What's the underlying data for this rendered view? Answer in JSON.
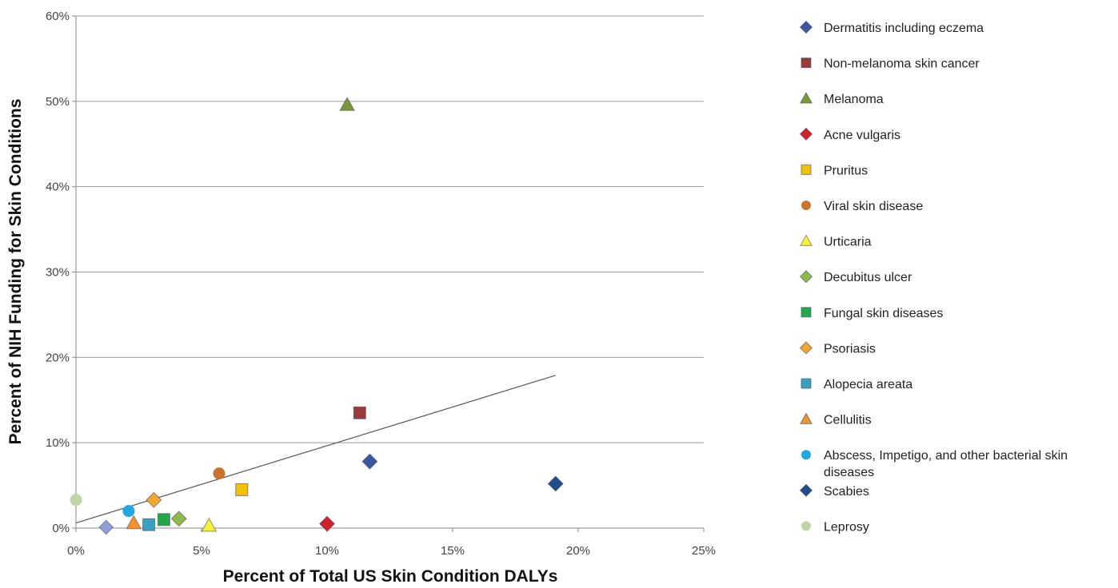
{
  "chart_data": {
    "type": "scatter",
    "xlabel": "Percent of Total US Skin Condition DALYs",
    "ylabel": "Percent of NIH Funding for Skin Conditions",
    "xlim": [
      0,
      25
    ],
    "ylim": [
      0,
      60
    ],
    "x_ticks": [
      "0%",
      "5%",
      "10%",
      "15%",
      "20%",
      "25%"
    ],
    "y_ticks": [
      "0%",
      "10%",
      "20%",
      "30%",
      "40%",
      "50%",
      "60%"
    ],
    "grid": "horizontal",
    "legend_position": "right",
    "trendline": {
      "x": [
        0,
        19.1
      ],
      "y": [
        0.6,
        17.9
      ]
    },
    "series": [
      {
        "name": "Dermatitis including eczema",
        "marker": "diamond",
        "color": "#3a56a0",
        "points": [
          {
            "x": 11.7,
            "y": 7.8
          }
        ]
      },
      {
        "name": "Non-melanoma skin cancer",
        "marker": "square",
        "color": "#9b3a3a",
        "points": [
          {
            "x": 11.3,
            "y": 13.5
          }
        ]
      },
      {
        "name": "Melanoma",
        "marker": "triangle",
        "color": "#7a9a3a",
        "points": [
          {
            "x": 10.8,
            "y": 49.6
          }
        ]
      },
      {
        "name": "Acne vulgaris",
        "marker": "diamond",
        "color": "#d0202a",
        "points": [
          {
            "x": 10.0,
            "y": 0.5
          }
        ]
      },
      {
        "name": "Pruritus",
        "marker": "square",
        "color": "#f2c200",
        "points": [
          {
            "x": 6.6,
            "y": 4.5
          }
        ]
      },
      {
        "name": "Viral skin disease",
        "marker": "circle",
        "color": "#c8732e",
        "points": [
          {
            "x": 5.7,
            "y": 6.4
          }
        ]
      },
      {
        "name": "Urticaria",
        "marker": "triangle",
        "color": "#f4f23a",
        "points": [
          {
            "x": 5.3,
            "y": 0.3
          }
        ]
      },
      {
        "name": "Decubitus ulcer",
        "marker": "diamond",
        "color": "#8dbb4a",
        "points": [
          {
            "x": 4.1,
            "y": 1.1
          }
        ]
      },
      {
        "name": "Fungal skin diseases",
        "marker": "square",
        "color": "#22a84a",
        "points": [
          {
            "x": 3.5,
            "y": 1.0
          }
        ]
      },
      {
        "name": "Psoriasis",
        "marker": "diamond",
        "color": "#f0a830",
        "points": [
          {
            "x": 3.1,
            "y": 3.3
          }
        ]
      },
      {
        "name": "Alopecia areata",
        "marker": "square",
        "color": "#3aa0c0",
        "points": [
          {
            "x": 2.9,
            "y": 0.4
          }
        ]
      },
      {
        "name": "Cellulitis",
        "marker": "triangle",
        "color": "#f2922e",
        "points": [
          {
            "x": 2.3,
            "y": 0.6
          }
        ]
      },
      {
        "name": "Abscess, Impetigo, and other bacterial skin diseases",
        "marker": "circle",
        "color": "#22a8e0",
        "points": [
          {
            "x": 2.1,
            "y": 2.0
          }
        ]
      },
      {
        "name": "Scabies",
        "marker": "diamond",
        "color": "#1f4e8c",
        "points": [
          {
            "x": 19.1,
            "y": 5.2
          }
        ]
      },
      {
        "name": "Leprosy",
        "marker": "circle",
        "color": "#bcd6a6",
        "points": [
          {
            "x": 0.0,
            "y": 3.3
          }
        ]
      }
    ],
    "unlabeled_points": [
      {
        "marker": "diamond",
        "color": "#8ea0d8",
        "x": 1.2,
        "y": 0.1
      }
    ]
  }
}
